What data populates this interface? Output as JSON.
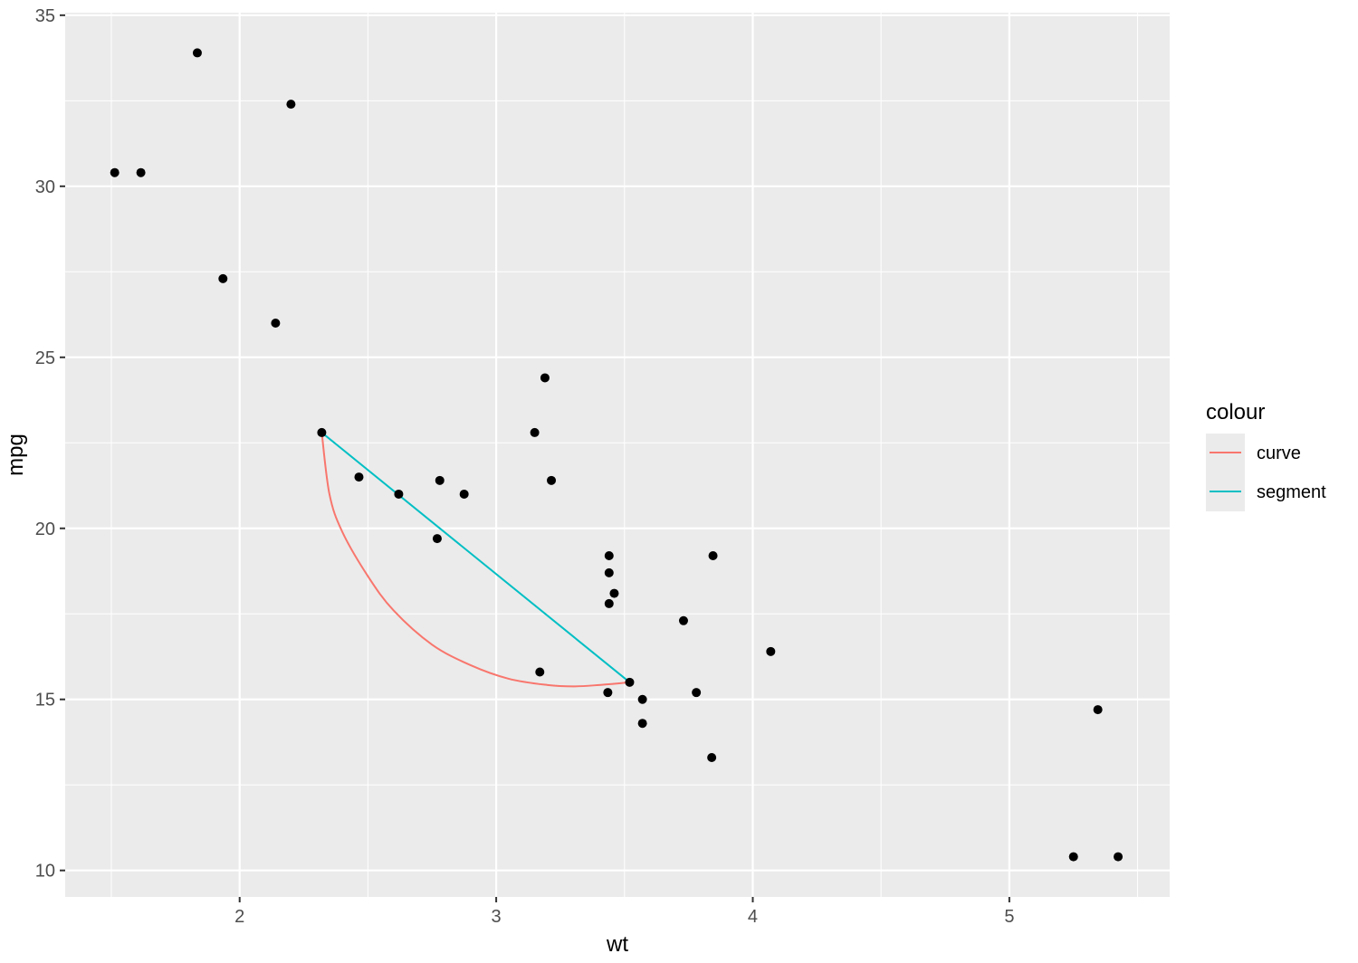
{
  "chart_data": {
    "type": "scatter",
    "title": "",
    "xlabel": "wt",
    "ylabel": "mpg",
    "xlim": [
      1.32,
      5.625
    ],
    "ylim": [
      9.225,
      35.075
    ],
    "x_ticks": [
      2,
      3,
      4,
      5
    ],
    "x_tick_labels": [
      "2",
      "3",
      "4",
      "5"
    ],
    "x_minor": [
      1.5,
      2.5,
      3.5,
      4.5,
      5.5
    ],
    "y_ticks": [
      10,
      15,
      20,
      25,
      30,
      35
    ],
    "y_tick_labels": [
      "10",
      "15",
      "20",
      "25",
      "30",
      "35"
    ],
    "y_minor": [
      12.5,
      17.5,
      22.5,
      27.5,
      32.5
    ],
    "grid": true,
    "panel_background": "#ebebeb",
    "points": {
      "color": "#000000",
      "x": [
        2.62,
        2.875,
        2.32,
        3.215,
        3.44,
        3.46,
        3.57,
        3.19,
        3.15,
        3.44,
        3.44,
        4.07,
        3.73,
        3.78,
        5.25,
        5.424,
        5.345,
        2.2,
        1.615,
        1.835,
        2.465,
        3.52,
        3.435,
        3.84,
        3.845,
        1.935,
        2.14,
        1.513,
        3.17,
        2.77,
        3.57,
        2.78
      ],
      "y": [
        21.0,
        21.0,
        22.8,
        21.4,
        18.7,
        18.1,
        14.3,
        24.4,
        22.8,
        19.2,
        17.8,
        16.4,
        17.3,
        15.2,
        10.4,
        10.4,
        14.7,
        32.4,
        30.4,
        33.9,
        21.5,
        15.5,
        15.2,
        13.3,
        19.2,
        27.3,
        26.0,
        30.4,
        15.8,
        19.7,
        15.0,
        21.4
      ]
    },
    "series": [
      {
        "name": "segment",
        "color": "#00bfc4",
        "x": [
          2.32,
          3.52
        ],
        "y": [
          22.8,
          15.5
        ]
      },
      {
        "name": "curve",
        "color": "#f8766d",
        "x": [
          2.32,
          2.35,
          2.4,
          2.5,
          2.6,
          2.75,
          2.9,
          3.05,
          3.2,
          3.3,
          3.4,
          3.52
        ],
        "y": [
          22.8,
          21.0,
          19.9,
          18.6,
          17.6,
          16.6,
          16.0,
          15.6,
          15.42,
          15.38,
          15.42,
          15.5
        ]
      }
    ],
    "legend": {
      "title": "colour",
      "placement": "right",
      "entries": [
        {
          "label": "curve",
          "color": "#f8766d"
        },
        {
          "label": "segment",
          "color": "#00bfc4"
        }
      ]
    }
  }
}
